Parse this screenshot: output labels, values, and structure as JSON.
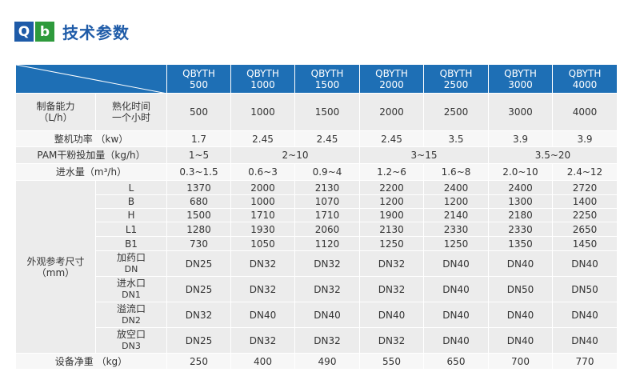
{
  "header": {
    "badge_q": "Q",
    "badge_b": "b",
    "title": "技术参数"
  },
  "table": {
    "models": [
      [
        "QBYTH",
        "500"
      ],
      [
        "QBYTH",
        "1000"
      ],
      [
        "QBYTH",
        "1500"
      ],
      [
        "QBYTH",
        "2000"
      ],
      [
        "QBYTH",
        "2500"
      ],
      [
        "QBYTH",
        "3000"
      ],
      [
        "QBYTH",
        "4000"
      ]
    ],
    "capacity": {
      "label_1": "制备能力",
      "label_2": "（L/h）",
      "sub_1": "熟化时间",
      "sub_2": "一个小时",
      "values": [
        "500",
        "1000",
        "1500",
        "2000",
        "2500",
        "3000",
        "4000"
      ]
    },
    "power": {
      "label": "整机功率 （kw）",
      "values": [
        "1.7",
        "2.45",
        "2.45",
        "2.45",
        "3.5",
        "3.9",
        "3.9"
      ]
    },
    "pam": {
      "label": "PAM干粉投加量（kg/h）",
      "values": [
        "1~5",
        "2~10",
        "3~15",
        "3.5~20"
      ]
    },
    "inflow": {
      "label": "进水量（m³/h）",
      "values": [
        "0.3~1.5",
        "0.6~3",
        "0.9~4",
        "1.2~6",
        "1.6~8",
        "2.0~10",
        "2.4~12"
      ]
    },
    "dimensions": {
      "label_1": "外观参考尺寸",
      "label_2": "（mm）",
      "rows": [
        {
          "name": "L",
          "values": [
            "1370",
            "2000",
            "2130",
            "2200",
            "2400",
            "2400",
            "2720"
          ]
        },
        {
          "name": "B",
          "values": [
            "680",
            "1000",
            "1070",
            "1200",
            "1200",
            "1300",
            "1400"
          ]
        },
        {
          "name": "H",
          "values": [
            "1500",
            "1710",
            "1710",
            "1900",
            "2140",
            "2180",
            "2250"
          ]
        },
        {
          "name": "L1",
          "values": [
            "1280",
            "1930",
            "2060",
            "2130",
            "2330",
            "2330",
            "2650"
          ]
        },
        {
          "name": "B1",
          "values": [
            "730",
            "1050",
            "1120",
            "1250",
            "1250",
            "1350",
            "1450"
          ]
        }
      ],
      "ports": [
        {
          "name": "加药口",
          "code": "DN",
          "values": [
            "DN25",
            "DN32",
            "DN32",
            "DN32",
            "DN40",
            "DN40",
            "DN40"
          ]
        },
        {
          "name": "进水口",
          "code": "DN1",
          "values": [
            "DN25",
            "DN32",
            "DN32",
            "DN32",
            "DN40",
            "DN50",
            "DN50"
          ]
        },
        {
          "name": "溢流口",
          "code": "DN2",
          "values": [
            "DN32",
            "DN40",
            "DN40",
            "DN40",
            "DN40",
            "DN40",
            "DN40"
          ]
        },
        {
          "name": "放空口",
          "code": "DN3",
          "values": [
            "DN25",
            "DN32",
            "DN32",
            "DN32",
            "DN40",
            "DN40",
            "DN40"
          ]
        }
      ]
    },
    "weight": {
      "label": "设备净重 （kg）",
      "values": [
        "250",
        "400",
        "490",
        "550",
        "650",
        "700",
        "770"
      ]
    }
  }
}
